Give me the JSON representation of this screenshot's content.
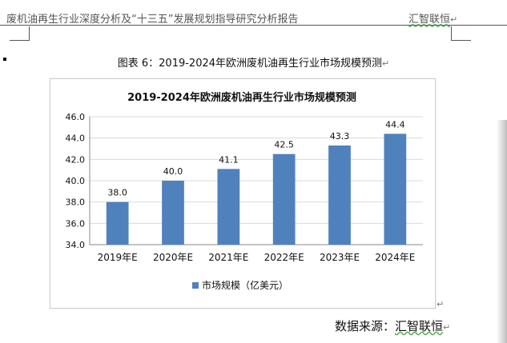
{
  "header": {
    "left_text": "废机油再生行业深度分析及“十三五”发展规划指导研究分析报告",
    "right_text": "汇智联恒",
    "mark": "↵"
  },
  "caption": {
    "text": "图表 6：2019-2024年欧洲废机油再生行业市场规模预测",
    "mark": "↵"
  },
  "source": {
    "label": "数据来源：",
    "org": "汇智联恒",
    "mark": "↵"
  },
  "after_chart_mark": "↵",
  "colors": {
    "bar": "#4f81bd",
    "grid": "#d9d9d9"
  },
  "chart_data": {
    "type": "bar",
    "title": "2019-2024年欧洲废机油再生行业市场规模预测",
    "categories": [
      "2019年E",
      "2020年E",
      "2021年E",
      "2022年E",
      "2023年E",
      "2024年E"
    ],
    "series": [
      {
        "name": "市场规模（亿美元）",
        "values": [
          38.0,
          40.0,
          41.1,
          42.5,
          43.3,
          44.4
        ]
      }
    ],
    "data_labels": [
      "38.0",
      "40.0",
      "41.1",
      "42.5",
      "43.3",
      "44.4"
    ],
    "y_ticks": [
      "34.0",
      "36.0",
      "38.0",
      "40.0",
      "42.0",
      "44.0",
      "46.0"
    ],
    "ylim": [
      34.0,
      46.0
    ],
    "xlabel": "",
    "ylabel": "",
    "grid": true,
    "legend": "bottom"
  }
}
